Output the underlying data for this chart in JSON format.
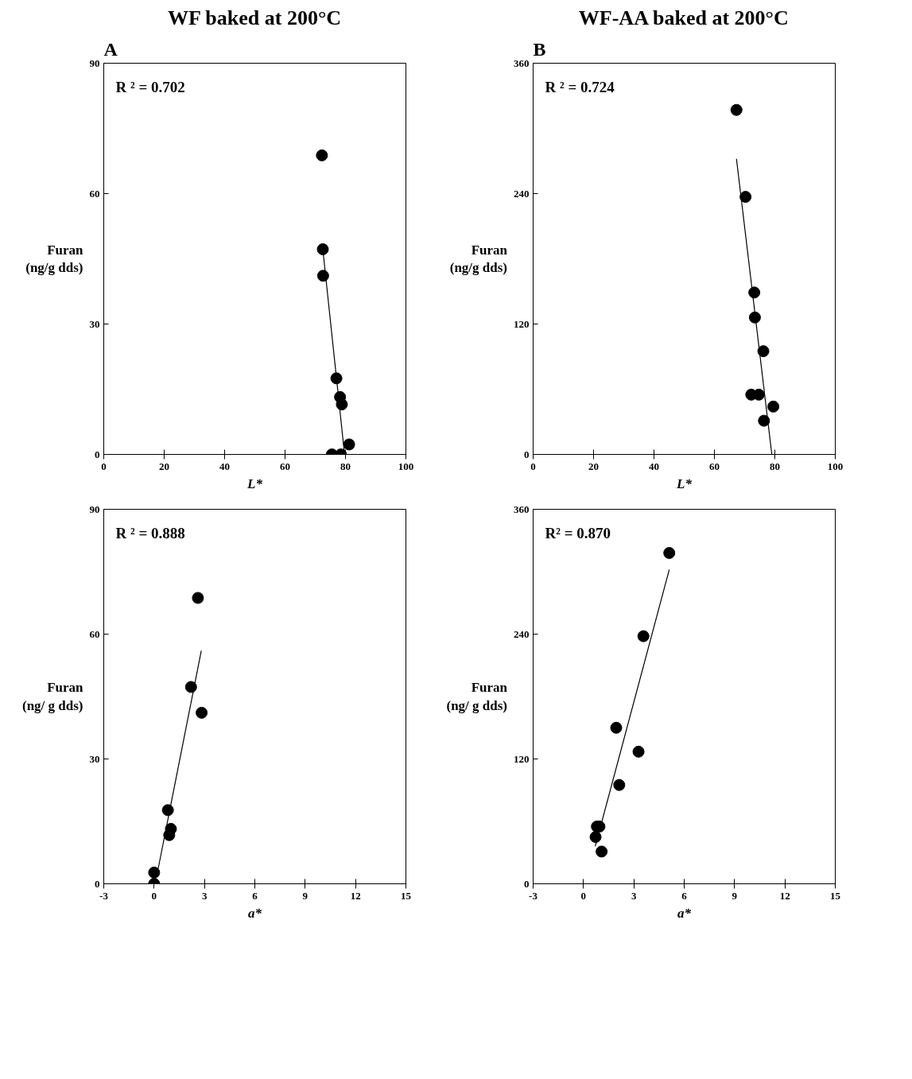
{
  "chart_data": [
    {
      "type": "scatter",
      "title": "A",
      "subtitle": "WF baked at 200°C",
      "xlabel": "L*",
      "ylabel": "Furan\n(ng/g dds)",
      "annotations": [
        "R ² = 0.702"
      ],
      "xlim": [
        0,
        100
      ],
      "xticks": [
        0,
        20,
        40,
        60,
        80,
        100
      ],
      "ylim": [
        0,
        90
      ],
      "yticks": [
        0,
        30,
        60,
        90
      ],
      "series": [
        {
          "marker": "circle",
          "color": "#000000",
          "x": [
            72.2,
            72.5,
            72.6,
            77.0,
            78.2,
            78.8,
            81.2,
            75.5,
            78.5
          ],
          "values": [
            68.8,
            47.2,
            41.1,
            17.5,
            13.2,
            11.5,
            2.3,
            0,
            0
          ]
        },
        {
          "type": "line",
          "color": "#000000",
          "x": [
            72.5,
            79.7
          ],
          "values": [
            47.2,
            0
          ]
        }
      ]
    },
    {
      "type": "scatter",
      "title": "B",
      "subtitle": "WF-AA baked at 200°C",
      "xlabel": "L*",
      "ylabel": "Furan\n(ng/g dds)",
      "annotations": [
        "R ² = 0.724"
      ],
      "xlim": [
        0,
        100
      ],
      "xticks": [
        0,
        20,
        40,
        60,
        80,
        100
      ],
      "ylim": [
        0,
        360
      ],
      "yticks": [
        0,
        120,
        240,
        360
      ],
      "series": [
        {
          "marker": "circle",
          "color": "#000000",
          "x": [
            67.3,
            70.3,
            73.2,
            73.4,
            76.2,
            72.2,
            74.7,
            79.5,
            76.4
          ],
          "values": [
            317,
            237,
            149,
            126,
            95,
            55,
            55,
            44,
            31
          ]
        },
        {
          "type": "line",
          "color": "#000000",
          "x": [
            67.3,
            79.0
          ],
          "values": [
            272,
            0
          ]
        }
      ]
    },
    {
      "type": "scatter",
      "xlabel": "a*",
      "ylabel": "Furan\n(ng/ g dds)",
      "annotations": [
        "R ² = 0.888"
      ],
      "xlim": [
        -3,
        15
      ],
      "xticks": [
        -3,
        0,
        3,
        6,
        9,
        12,
        15
      ],
      "ylim": [
        0,
        90
      ],
      "yticks": [
        0,
        30,
        60,
        90
      ],
      "series": [
        {
          "marker": "circle",
          "color": "#000000",
          "x": [
            2.61,
            2.2,
            2.83,
            0.82,
            1.0,
            0.9,
            0.0,
            0.0
          ],
          "values": [
            68.7,
            47.3,
            41.1,
            17.7,
            13.2,
            11.7,
            2.7,
            0
          ]
        },
        {
          "type": "line",
          "color": "#000000",
          "x": [
            0.22,
            2.81
          ],
          "values": [
            3.2,
            56.0
          ]
        }
      ]
    },
    {
      "type": "scatter",
      "xlabel": "a*",
      "ylabel": "Furan\n(ng/ g dds)",
      "annotations": [
        "R² = 0.870"
      ],
      "xlim": [
        -3,
        15
      ],
      "xticks": [
        -3,
        0,
        3,
        6,
        9,
        12,
        15
      ],
      "ylim": [
        0,
        360
      ],
      "yticks": [
        0,
        120,
        240,
        360
      ],
      "series": [
        {
          "marker": "circle",
          "color": "#000000",
          "x": [
            5.11,
            3.57,
            1.95,
            3.28,
            2.13,
            0.8,
            0.95,
            0.72,
            1.08
          ],
          "values": [
            318,
            238,
            150,
            127,
            95,
            55,
            55,
            45,
            31
          ]
        },
        {
          "type": "line",
          "color": "#000000",
          "x": [
            0.7,
            5.11
          ],
          "values": [
            36,
            302
          ]
        }
      ]
    }
  ]
}
